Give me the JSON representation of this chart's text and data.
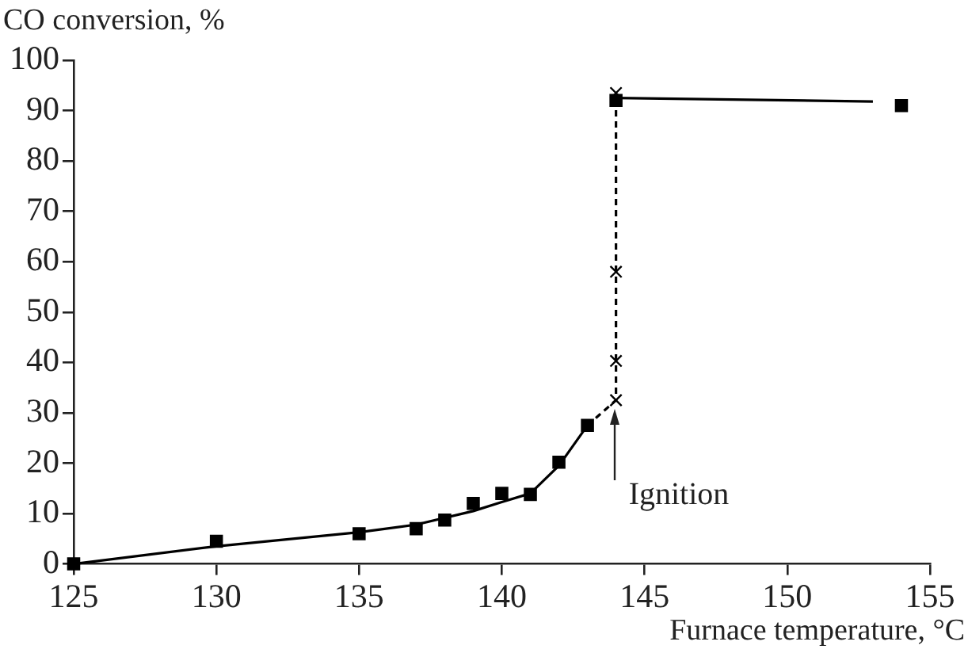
{
  "chart_data": {
    "type": "scatter",
    "xlabel": "Furnace temperature, °C",
    "ylabel": "CO conversion, %",
    "xlim": [
      125,
      155
    ],
    "xticks": [
      125,
      130,
      135,
      140,
      145,
      150,
      155
    ],
    "ylim": [
      0,
      100
    ],
    "yticks": [
      0,
      10,
      20,
      30,
      40,
      50,
      60,
      70,
      80,
      90,
      100
    ],
    "grid": false,
    "legend": false,
    "annotations": [
      {
        "text": "Ignition",
        "x": 144,
        "y": 32.5
      }
    ],
    "series": [
      {
        "type": "scatter",
        "marker": "square",
        "color": "#000000",
        "x": [
          125,
          130,
          135,
          137,
          138,
          139,
          140,
          141,
          142,
          143,
          144,
          154
        ],
        "values": [
          0,
          4.5,
          6,
          7,
          8.7,
          12,
          14,
          13.8,
          20.2,
          27.5,
          92,
          91
        ]
      },
      {
        "type": "scatter",
        "marker": "cross",
        "color": "#000000",
        "x": [
          144,
          144,
          144,
          144
        ],
        "values": [
          32.5,
          40.3,
          58,
          93.5
        ]
      },
      {
        "type": "line",
        "marker": "none",
        "line_style": "solid",
        "color": "#000000",
        "x": [
          125,
          130,
          135,
          137,
          139,
          140,
          141,
          142,
          143
        ],
        "values": [
          0,
          3.5,
          6.3,
          7.8,
          10.5,
          12.3,
          14,
          19.5,
          27.5
        ]
      },
      {
        "type": "line",
        "marker": "none",
        "line_style": "dashed",
        "color": "#000000",
        "x": [
          143,
          144,
          144
        ],
        "values": [
          27.5,
          32.5,
          93
        ]
      },
      {
        "type": "line",
        "marker": "none",
        "line_style": "solid",
        "color": "#000000",
        "x": [
          144,
          153
        ],
        "values": [
          92.5,
          91.8
        ]
      }
    ]
  }
}
